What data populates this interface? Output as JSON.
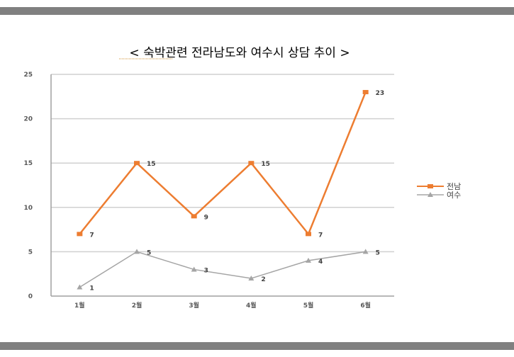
{
  "chart_data": {
    "type": "line",
    "title": "< 숙박관련 전라남도와 여수시 상담 추이 >",
    "xlabel": "",
    "ylabel": "",
    "categories": [
      "1월",
      "2월",
      "3월",
      "4월",
      "5월",
      "6월"
    ],
    "ylim": [
      0,
      25
    ],
    "yticks": [
      0,
      5,
      10,
      15,
      20,
      25
    ],
    "grid": true,
    "legend": "right",
    "series": [
      {
        "name": "전남",
        "values": [
          7,
          15,
          9,
          15,
          7,
          23
        ],
        "color": "#ED7D31",
        "marker": "square"
      },
      {
        "name": "여수",
        "values": [
          1,
          5,
          3,
          2,
          4,
          5
        ],
        "color": "#A5A5A5",
        "marker": "triangle"
      }
    ]
  }
}
